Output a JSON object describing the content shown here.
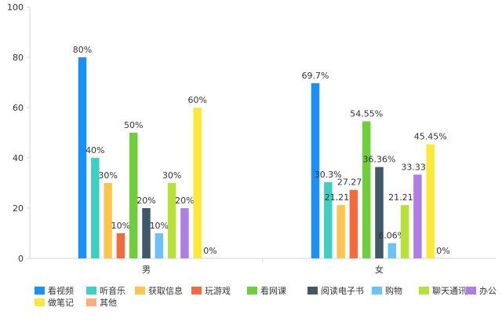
{
  "chart_data": {
    "type": "bar",
    "categories": [
      "男",
      "女"
    ],
    "series": [
      {
        "name": "看视频",
        "color": "#1a90ff",
        "values": [
          80,
          69.7
        ],
        "labels": [
          "80%",
          "69.7%"
        ]
      },
      {
        "name": "听音乐",
        "color": "#3ecfc0",
        "values": [
          40,
          30.3
        ],
        "labels": [
          "40%",
          "30.3%"
        ]
      },
      {
        "name": "获取信息",
        "color": "#ffc44d",
        "values": [
          30,
          21.21
        ],
        "labels": [
          "30%",
          "21.21%"
        ]
      },
      {
        "name": "玩游戏",
        "color": "#f26b3f",
        "values": [
          10,
          27.27
        ],
        "labels": [
          "10%",
          "27.27%"
        ]
      },
      {
        "name": "看网课",
        "color": "#6fcf3b",
        "values": [
          50,
          54.55
        ],
        "labels": [
          "50%",
          "54.55%"
        ]
      },
      {
        "name": "阅读电子书",
        "color": "#415868",
        "values": [
          20,
          36.36
        ],
        "labels": [
          "20%",
          "36.36%"
        ]
      },
      {
        "name": "购物",
        "color": "#6cc1f7",
        "values": [
          10,
          6.06
        ],
        "labels": [
          "10%",
          "6.06%"
        ]
      },
      {
        "name": "聊天通讯",
        "color": "#b7e03a",
        "values": [
          30,
          21.21
        ],
        "labels": [
          "30%",
          "21.21%"
        ]
      },
      {
        "name": "办公",
        "color": "#ad7ee6",
        "values": [
          20,
          33.33
        ],
        "labels": [
          "20%",
          "33.33%"
        ]
      },
      {
        "name": "做笔记",
        "color": "#fbe93a",
        "values": [
          60,
          45.45
        ],
        "labels": [
          "60%",
          "45.45%"
        ]
      },
      {
        "name": "其他",
        "color": "#ffae7a",
        "values": [
          0,
          0
        ],
        "labels": [
          "0%",
          "0%"
        ]
      }
    ],
    "yticks": [
      "0",
      "20",
      "40",
      "60",
      "80",
      "100"
    ],
    "ylim": [
      0,
      100
    ],
    "grid": false,
    "legend_position": "bottom"
  }
}
